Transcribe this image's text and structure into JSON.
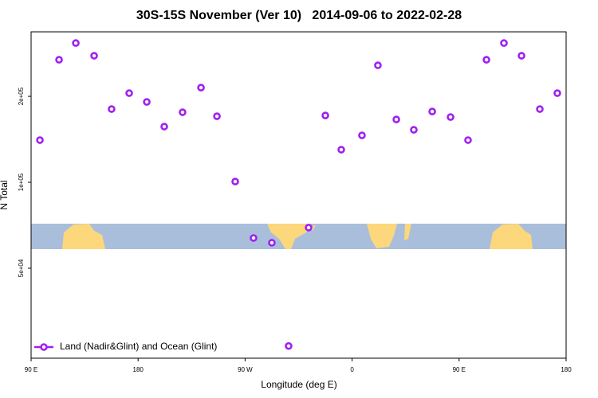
{
  "chart_data": {
    "type": "scatter",
    "title": "30S-15S November (Ver 10)   2014-09-06 to 2022-02-28",
    "x_label": "Longitude (deg E)",
    "y_label": "N Total",
    "xlim": [
      90,
      540
    ],
    "ylim": [
      24200,
      336500
    ],
    "yscale": "log",
    "xticks": [
      {
        "value": 90,
        "label": "90 E"
      },
      180,
      {
        "value": 270,
        "label": "90 W"
      },
      {
        "value": 360,
        "label": "0"
      },
      {
        "value": 450,
        "label": "90 E"
      },
      {
        "value": 540,
        "label": "180"
      }
    ],
    "yticks": [
      {
        "value": 50000,
        "label": "5e+04"
      },
      {
        "value": 100000,
        "label": "1e+05"
      },
      {
        "value": 200000,
        "label": "2e+05"
      }
    ],
    "legend": "bottom-left",
    "series": [
      {
        "name": "Land (Nadir&Glint) and Ocean (Glint)",
        "color": "#a020f0",
        "x": [
          97.4,
          113.5,
          127.6,
          143,
          157.7,
          172.5,
          187.3,
          202,
          217.4,
          232.9,
          246.3,
          261.7,
          277.1,
          292.5,
          306.6,
          323.4,
          337.5,
          350.9,
          368.3,
          381.7,
          397.2,
          411.9,
          427.4,
          442.8,
          457.5,
          473,
          487.7,
          502.5,
          517.9,
          532.6
        ],
        "values": [
          140500,
          268700,
          307400,
          277500,
          180500,
          205200,
          191200,
          156700,
          175900,
          214600,
          170300,
          100600,
          63800,
          61400,
          26700,
          69400,
          171400,
          130100,
          146000,
          256900,
          166000,
          152700,
          177000,
          169200,
          140500,
          268700,
          307400,
          277500,
          180500,
          205200
        ]
      }
    ]
  }
}
